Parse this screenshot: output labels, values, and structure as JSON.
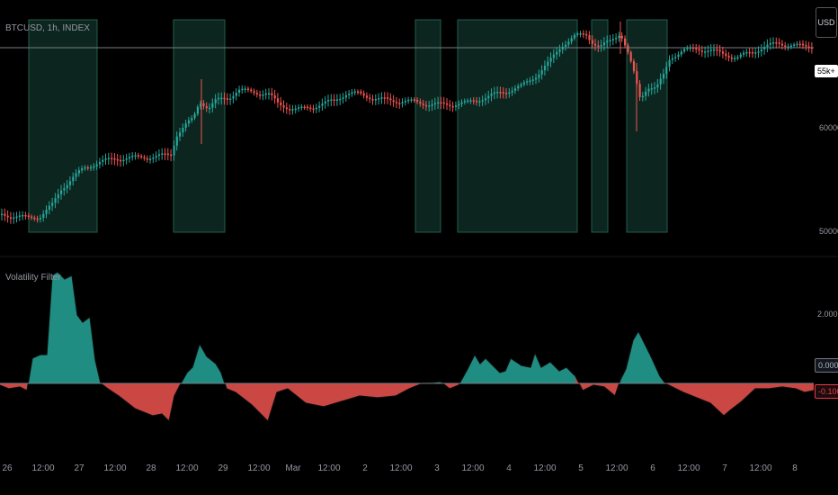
{
  "symbol": "BTCUSD, 1h, INDEX",
  "indicator": "Volatility Filter",
  "currency": "USD",
  "price_axis": {
    "current": "55k+",
    "tick_high": "60000.000",
    "tick_low": "50000.000"
  },
  "indicator_axis": {
    "tick": "2.000",
    "zero": "0.000",
    "current": "-0.100"
  },
  "time_axis": [
    "26",
    "12:00",
    "27",
    "12:00",
    "28",
    "12:00",
    "29",
    "12:00",
    "Mar",
    "12:00",
    "2",
    "12:00",
    "3",
    "12:00",
    "4",
    "12:00",
    "5",
    "12:00",
    "6",
    "12:00",
    "7",
    "12:00",
    "8"
  ],
  "colors": {
    "up": "#26a69a",
    "down": "#ef5350",
    "zone": "#0d2a22",
    "background": "#000000"
  }
}
